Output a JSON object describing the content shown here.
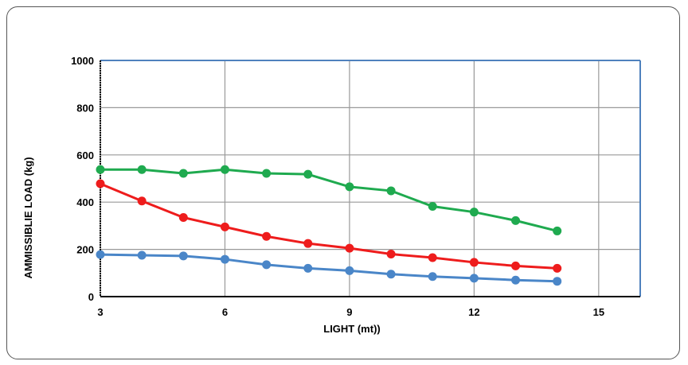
{
  "chart_data": {
    "type": "line",
    "xlabel": "LIGHT (mt))",
    "ylabel": "AMMISSIBLIE LOAD (kg)",
    "xlim": [
      3,
      16
    ],
    "ylim": [
      0,
      1000
    ],
    "x_ticks": [
      3,
      6,
      9,
      12,
      15
    ],
    "y_ticks": [
      0,
      200,
      400,
      600,
      800,
      1000
    ],
    "grid": true,
    "legend": "none",
    "x": [
      3,
      4,
      5,
      6,
      7,
      8,
      9,
      10,
      11,
      12,
      13,
      14
    ],
    "series": [
      {
        "color": "#1faa4f",
        "values": [
          538,
          538,
          522,
          538,
          522,
          518,
          465,
          448,
          382,
          358,
          322,
          278
        ]
      },
      {
        "color": "#ee1c1c",
        "values": [
          478,
          405,
          335,
          295,
          255,
          225,
          205,
          180,
          165,
          145,
          130,
          120
        ]
      },
      {
        "color": "#4a86c8",
        "values": [
          178,
          175,
          172,
          158,
          135,
          120,
          110,
          95,
          85,
          78,
          70,
          65
        ]
      }
    ],
    "colors": {
      "grid": "#999999",
      "top_border": "#4f81bd",
      "right_border": "#4f81bd",
      "axis": "#000000"
    }
  }
}
